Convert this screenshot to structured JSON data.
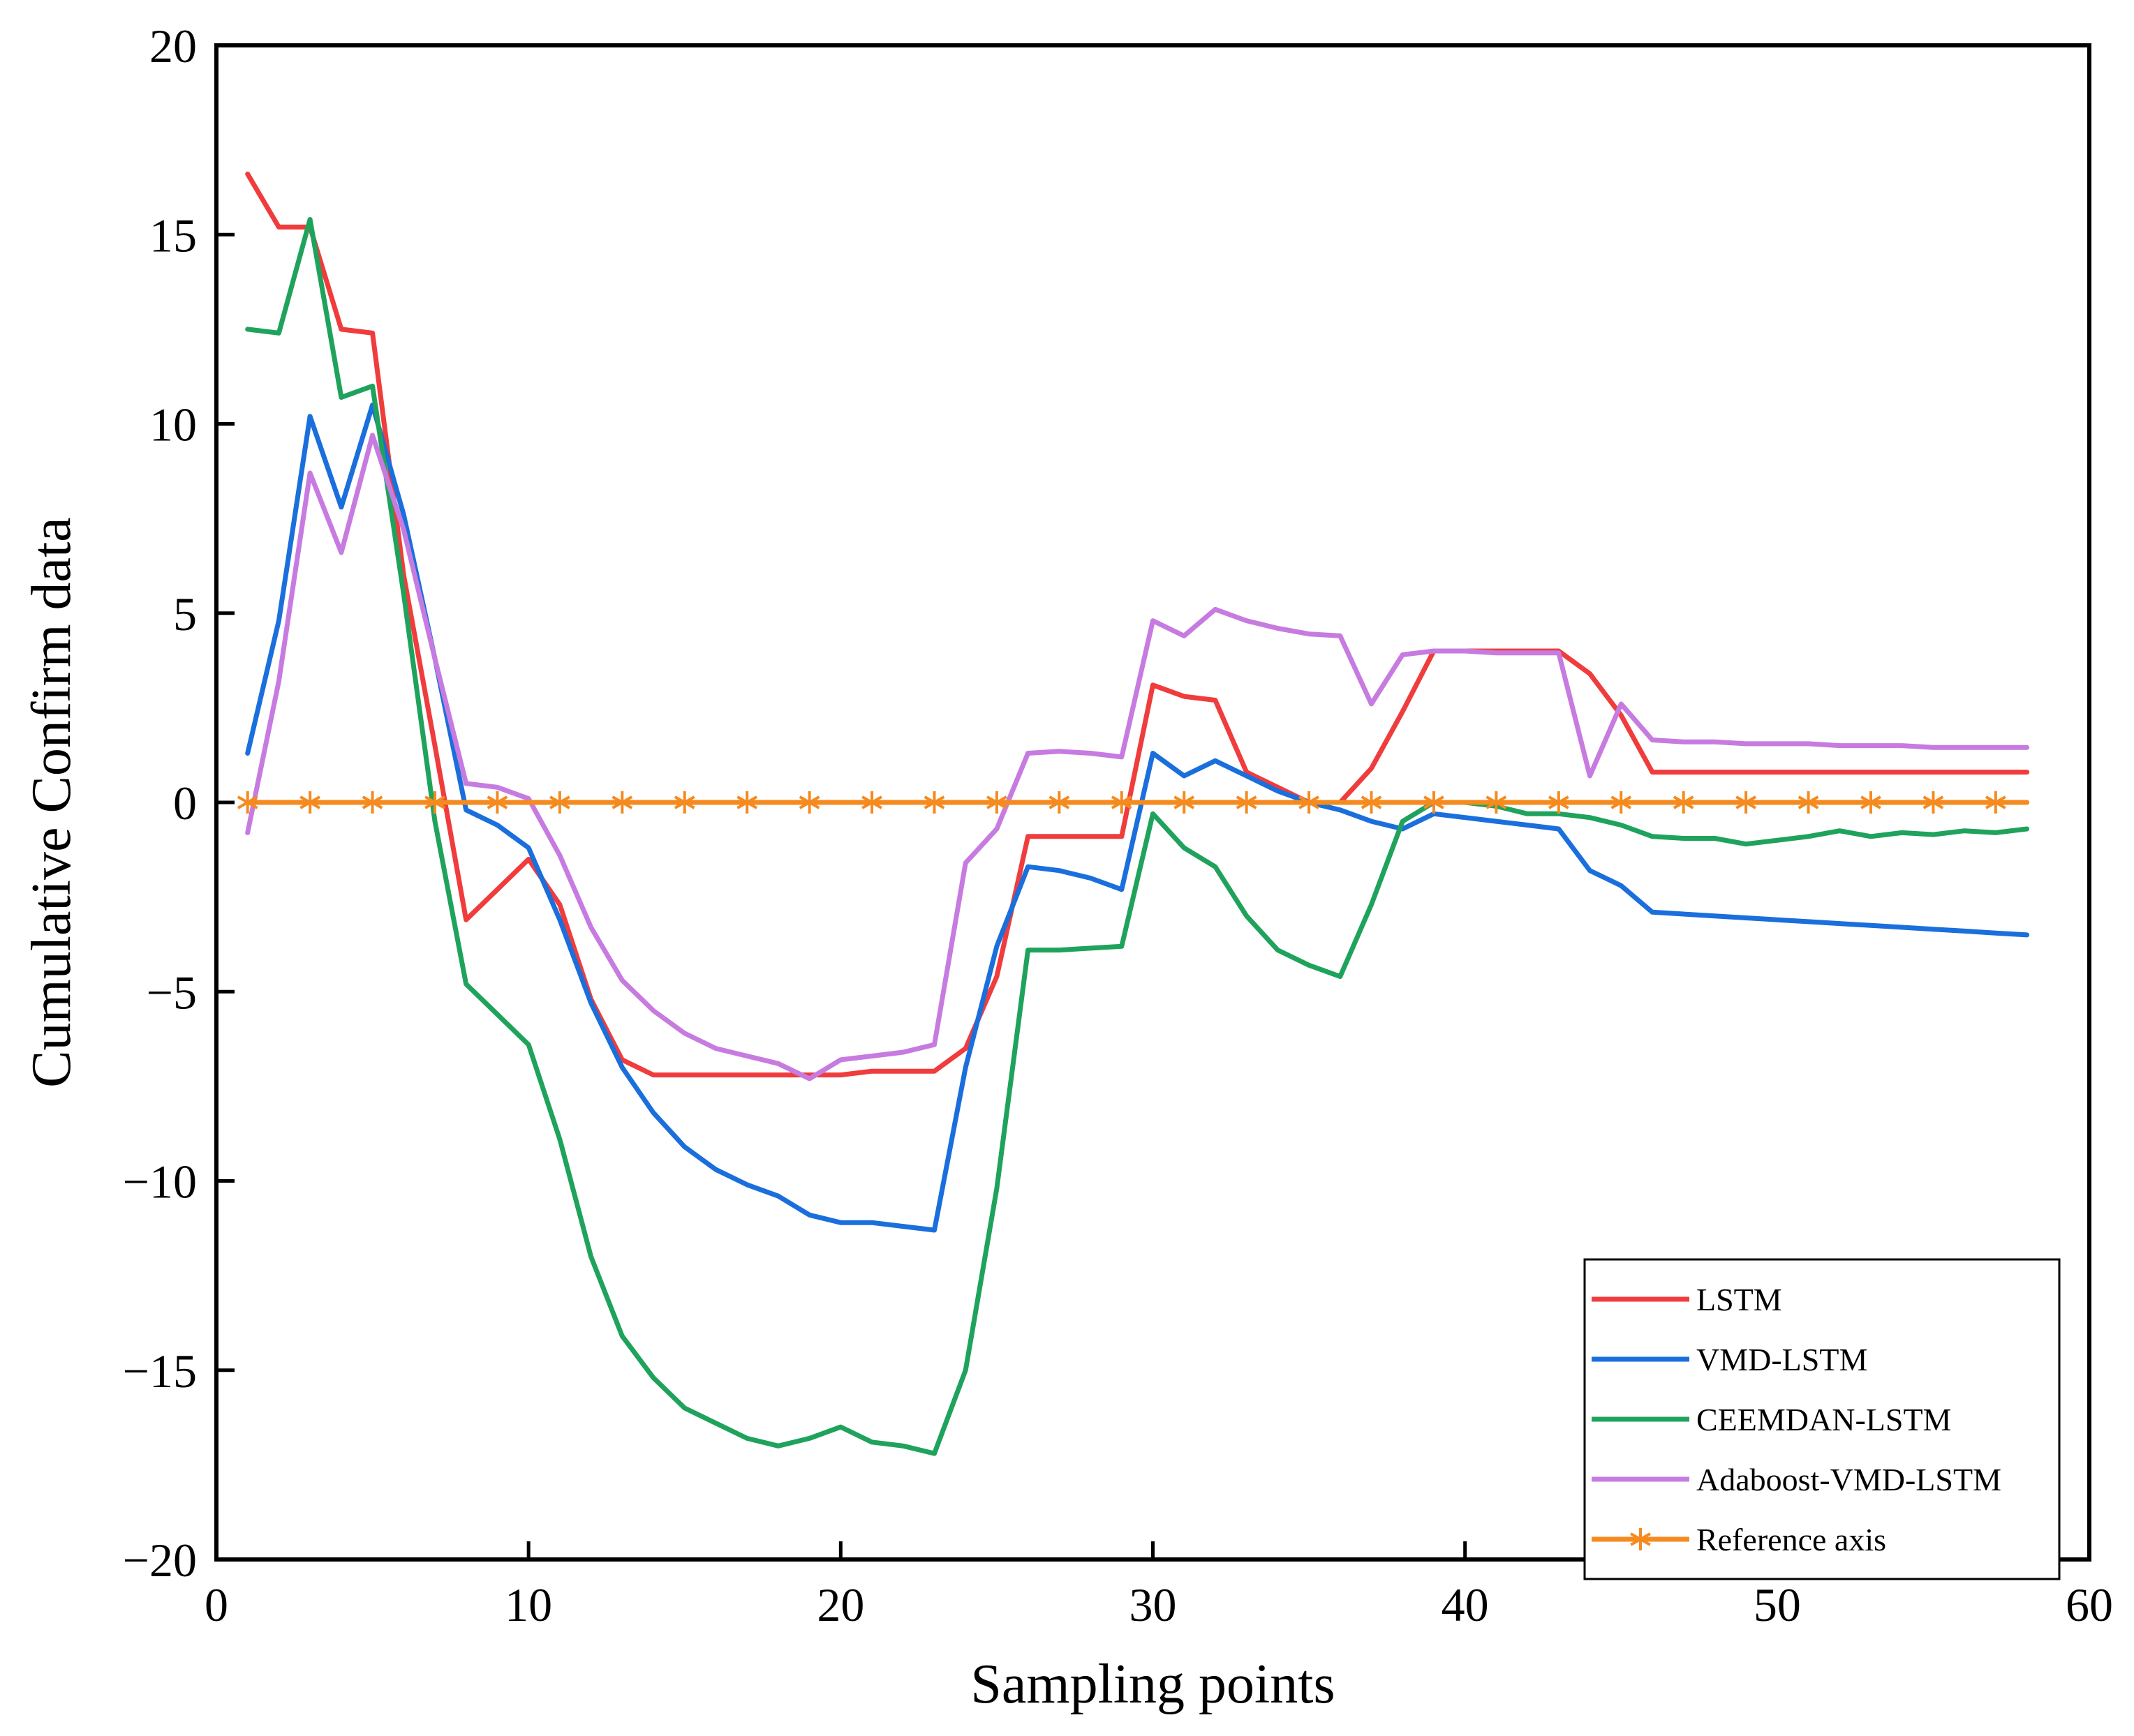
{
  "chart_data": {
    "type": "line",
    "title": "",
    "xlabel": "Sampling points",
    "ylabel": "Cumulative Confirm data",
    "xlim": [
      0,
      60
    ],
    "ylim": [
      -20,
      20
    ],
    "xticks": [
      0,
      10,
      20,
      30,
      40,
      50,
      60
    ],
    "yticks": [
      -20,
      -15,
      -10,
      -5,
      0,
      5,
      10,
      15,
      20
    ],
    "ytick_labels": [
      "−20",
      "−15",
      "−10",
      "−5",
      "0",
      "5",
      "10",
      "15",
      "20"
    ],
    "grid": false,
    "legend_position": "bottom-right",
    "x": [
      1,
      2,
      3,
      4,
      5,
      6,
      7,
      8,
      9,
      10,
      11,
      12,
      13,
      14,
      15,
      16,
      17,
      18,
      19,
      20,
      21,
      22,
      23,
      24,
      25,
      26,
      27,
      28,
      29,
      30,
      31,
      32,
      33,
      34,
      35,
      36,
      37,
      38,
      39,
      40,
      41,
      42,
      43,
      44,
      45,
      46,
      47,
      48,
      49,
      50,
      51,
      52,
      53,
      54,
      55,
      56,
      57,
      58
    ],
    "series": [
      {
        "name": "LSTM",
        "color": "#f03c3c",
        "values": [
          16.6,
          15.2,
          15.2,
          12.5,
          12.4,
          6.0,
          1.5,
          -3.1,
          -2.3,
          -1.5,
          -2.7,
          -5.2,
          -6.8,
          -7.2,
          -7.2,
          -7.2,
          -7.2,
          -7.2,
          -7.2,
          -7.2,
          -7.1,
          -7.1,
          -7.1,
          -6.5,
          -4.6,
          -0.9,
          -0.9,
          -0.9,
          -0.9,
          3.1,
          2.8,
          2.7,
          0.8,
          0.4,
          0.0,
          0.0,
          0.9,
          2.4,
          4.0,
          4.0,
          4.0,
          4.0,
          4.0,
          3.4,
          2.3,
          0.8,
          0.8,
          0.8,
          0.8,
          0.8,
          0.8,
          0.8,
          0.8,
          0.8,
          0.8,
          0.8,
          0.8,
          0.8
        ]
      },
      {
        "name": "VMD-LSTM",
        "color": "#1a6fdc",
        "values": [
          1.3,
          4.8,
          10.2,
          7.8,
          10.5,
          7.6,
          3.8,
          -0.2,
          -0.6,
          -1.2,
          -3.1,
          -5.3,
          -7.0,
          -8.2,
          -9.1,
          -9.7,
          -10.1,
          -10.4,
          -10.9,
          -11.1,
          -11.1,
          -11.2,
          -11.3,
          -7.0,
          -3.8,
          -1.7,
          -1.8,
          -2.0,
          -2.3,
          1.3,
          0.7,
          1.1,
          0.7,
          0.3,
          0.0,
          -0.2,
          -0.5,
          -0.7,
          -0.3,
          -0.4,
          -0.5,
          -0.6,
          -0.7,
          -1.8,
          -2.2,
          -2.9,
          -2.95,
          -3.0,
          -3.05,
          -3.1,
          -3.15,
          -3.2,
          -3.25,
          -3.3,
          -3.35,
          -3.4,
          -3.45,
          -3.5
        ]
      },
      {
        "name": "CEEMDAN-LSTM",
        "color": "#1fa35c",
        "values": [
          12.5,
          12.4,
          15.4,
          10.7,
          11.0,
          5.5,
          -0.5,
          -4.8,
          -5.6,
          -6.4,
          -8.9,
          -12.0,
          -14.1,
          -15.2,
          -16.0,
          -16.4,
          -16.8,
          -17.0,
          -16.8,
          -16.5,
          -16.9,
          -17.0,
          -17.2,
          -15.0,
          -10.2,
          -3.9,
          -3.9,
          -3.85,
          -3.8,
          -0.3,
          -1.2,
          -1.7,
          -3.0,
          -3.9,
          -4.3,
          -4.6,
          -2.7,
          -0.5,
          0.0,
          0.0,
          -0.1,
          -0.3,
          -0.3,
          -0.4,
          -0.6,
          -0.9,
          -0.95,
          -0.95,
          -1.1,
          -1.0,
          -0.9,
          -0.75,
          -0.9,
          -0.8,
          -0.85,
          -0.75,
          -0.8,
          -0.7
        ]
      },
      {
        "name": "Adaboost-VMD-LSTM",
        "color": "#c77be0",
        "values": [
          -0.8,
          3.2,
          8.7,
          6.6,
          9.7,
          7.2,
          3.8,
          0.5,
          0.4,
          0.1,
          -1.4,
          -3.3,
          -4.7,
          -5.5,
          -6.1,
          -6.5,
          -6.7,
          -6.9,
          -7.3,
          -6.8,
          -6.7,
          -6.6,
          -6.4,
          -1.6,
          -0.7,
          1.3,
          1.35,
          1.3,
          1.2,
          4.8,
          4.4,
          5.1,
          4.8,
          4.6,
          4.45,
          4.4,
          2.6,
          3.9,
          4.0,
          4.0,
          3.95,
          3.95,
          3.95,
          0.7,
          2.6,
          1.65,
          1.6,
          1.6,
          1.55,
          1.55,
          1.55,
          1.5,
          1.5,
          1.5,
          1.45,
          1.45,
          1.45,
          1.45
        ]
      },
      {
        "name": "Reference axis",
        "color": "#f58a1f",
        "marker": "asterisk",
        "marker_x": [
          1,
          3,
          5,
          7,
          9,
          11,
          13,
          15,
          17,
          19,
          21,
          23,
          25,
          27,
          29,
          31,
          33,
          35,
          37,
          39,
          41,
          43,
          45,
          47,
          49,
          51,
          53,
          55,
          57
        ],
        "values": [
          0,
          0,
          0,
          0,
          0,
          0,
          0,
          0,
          0,
          0,
          0,
          0,
          0,
          0,
          0,
          0,
          0,
          0,
          0,
          0,
          0,
          0,
          0,
          0,
          0,
          0,
          0,
          0,
          0,
          0,
          0,
          0,
          0,
          0,
          0,
          0,
          0,
          0,
          0,
          0,
          0,
          0,
          0,
          0,
          0,
          0,
          0,
          0,
          0,
          0,
          0,
          0,
          0,
          0,
          0,
          0,
          0,
          0
        ]
      }
    ]
  }
}
